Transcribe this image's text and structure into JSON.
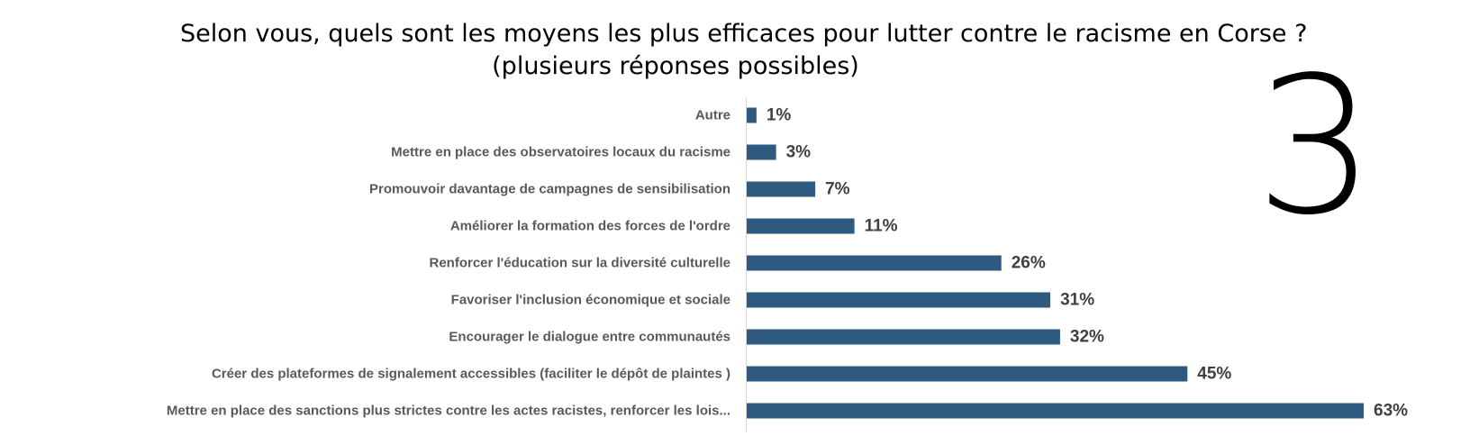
{
  "chart_data": {
    "type": "bar",
    "orientation": "horizontal",
    "title": "Selon vous, quels sont les moyens les plus efficaces pour lutter contre le racisme en Corse ?",
    "subtitle": "(plusieurs réponses possibles)",
    "categories": [
      "Autre",
      "Mettre en place des observatoires locaux du racisme",
      "Promouvoir davantage de campagnes de sensibilisation",
      "Améliorer la formation des forces de l'ordre",
      "Renforcer l'éducation sur la diversité culturelle",
      "Favoriser l'inclusion économique et sociale",
      "Encourager le dialogue entre communautés",
      "Créer des plateformes de signalement accessibles (faciliter le dépôt de plaintes )",
      "Mettre en place des sanctions plus strictes contre les actes racistes, renforcer les lois..."
    ],
    "values": [
      1,
      3,
      7,
      11,
      26,
      31,
      32,
      45,
      63
    ],
    "value_labels": [
      "1%",
      "3%",
      "7%",
      "11%",
      "26%",
      "31%",
      "32%",
      "45%",
      "63%"
    ],
    "unit": "%",
    "bar_color": "#2E5A7F",
    "xlim": [
      0,
      63
    ],
    "grid": false,
    "legend": "none"
  },
  "page_number": "3"
}
